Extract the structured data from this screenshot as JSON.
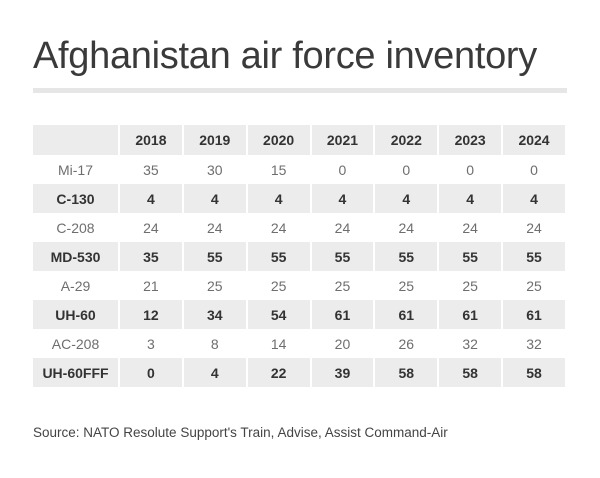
{
  "header": {
    "title": "Afghanistan air force inventory"
  },
  "table": {
    "columns": [
      "",
      "2018",
      "2019",
      "2020",
      "2021",
      "2022",
      "2023",
      "2024"
    ],
    "rows": [
      {
        "label": "Mi-17",
        "values": [
          "35",
          "30",
          "15",
          "0",
          "0",
          "0",
          "0"
        ]
      },
      {
        "label": "C-130",
        "values": [
          "4",
          "4",
          "4",
          "4",
          "4",
          "4",
          "4"
        ]
      },
      {
        "label": "C-208",
        "values": [
          "24",
          "24",
          "24",
          "24",
          "24",
          "24",
          "24"
        ]
      },
      {
        "label": "MD-530",
        "values": [
          "35",
          "55",
          "55",
          "55",
          "55",
          "55",
          "55"
        ]
      },
      {
        "label": "A-29",
        "values": [
          "21",
          "25",
          "25",
          "25",
          "25",
          "25",
          "25"
        ]
      },
      {
        "label": "UH-60",
        "values": [
          "12",
          "34",
          "54",
          "61",
          "61",
          "61",
          "61"
        ]
      },
      {
        "label": "AC-208",
        "values": [
          "3",
          "8",
          "14",
          "20",
          "26",
          "32",
          "32"
        ]
      },
      {
        "label": "UH-60FFF",
        "values": [
          "0",
          "4",
          "22",
          "39",
          "58",
          "58",
          "58"
        ]
      }
    ]
  },
  "footer": {
    "source": "Source: NATO Resolute Support's Train, Advise, Assist Command-Air"
  },
  "colors": {
    "header_bg": "#ececec",
    "stripe_bg": "#ececec",
    "title": "#3a3a3a"
  },
  "chart_data": {
    "type": "table",
    "title": "Afghanistan air force inventory",
    "categories": [
      "2018",
      "2019",
      "2020",
      "2021",
      "2022",
      "2023",
      "2024"
    ],
    "series": [
      {
        "name": "Mi-17",
        "values": [
          35,
          30,
          15,
          0,
          0,
          0,
          0
        ]
      },
      {
        "name": "C-130",
        "values": [
          4,
          4,
          4,
          4,
          4,
          4,
          4
        ]
      },
      {
        "name": "C-208",
        "values": [
          24,
          24,
          24,
          24,
          24,
          24,
          24
        ]
      },
      {
        "name": "MD-530",
        "values": [
          35,
          55,
          55,
          55,
          55,
          55,
          55
        ]
      },
      {
        "name": "A-29",
        "values": [
          21,
          25,
          25,
          25,
          25,
          25,
          25
        ]
      },
      {
        "name": "UH-60",
        "values": [
          12,
          34,
          54,
          61,
          61,
          61,
          61
        ]
      },
      {
        "name": "AC-208",
        "values": [
          3,
          8,
          14,
          20,
          26,
          32,
          32
        ]
      },
      {
        "name": "UH-60FFF",
        "values": [
          0,
          4,
          22,
          39,
          58,
          58,
          58
        ]
      }
    ],
    "source": "Source: NATO Resolute Support's Train, Advise, Assist Command-Air"
  }
}
